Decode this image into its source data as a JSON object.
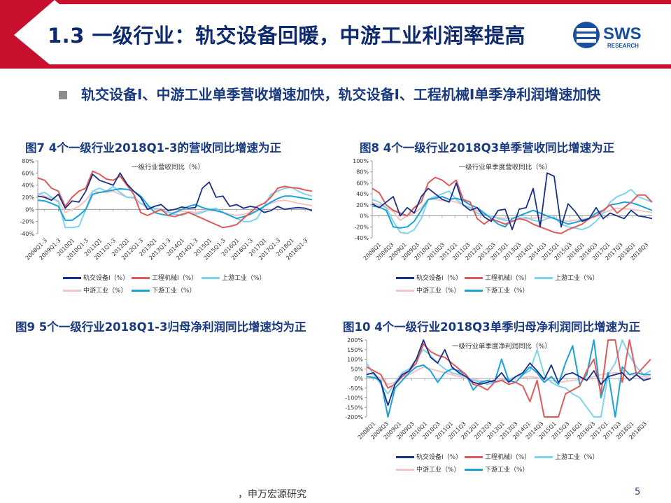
{
  "header": {
    "title": "1.3 一级行业：轨交设备回暖，中游工业利润率提高",
    "logo_text": "SWS",
    "logo_subtext": "RESEARCH"
  },
  "bullet": {
    "text": "轨交设备Ⅰ、中游工业单季营收增速加快，轨交设备Ⅰ、工程机械Ⅰ单季净利润增速加快"
  },
  "figures": {
    "fig7_title": "图7 4个一级行业2018Q1-3的营收同比增速为正",
    "fig8_title": "图8 4个一级行业2018Q3单季营收同比增速为正",
    "fig9_title": "图9 5个一级行业2018Q1-3归母净利润同比增速均为正",
    "fig10_title": "图10 4个一级行业2018Q3单季归母净利润同比增速为正"
  },
  "legend": {
    "s1": "轨交设备Ⅰ（%）",
    "s2": "工程机械Ⅰ（%）",
    "s3": "上游工业（%）",
    "s4": "中游工业（%）",
    "s5": "下游工业（%）"
  },
  "footer": {
    "source": "，申万宏源研究",
    "page": "5"
  },
  "colors": {
    "series": [
      "#1a2f8a",
      "#e05a5a",
      "#7fd3f0",
      "#f2c4c4",
      "#1aa3d9"
    ],
    "title": "#0d2a6e",
    "accent_red": "#c8102e"
  },
  "chart_data": [
    {
      "id": "fig7",
      "type": "line",
      "annotation": "一级行业营收同比（%）",
      "ylim": [
        -40,
        80
      ],
      "yticks": [
        -40,
        -20,
        0,
        20,
        40,
        60,
        80
      ],
      "ytick_labels": [
        "-40%",
        "-20%",
        "0%",
        "20%",
        "40%",
        "60%",
        "80%"
      ],
      "x_labels": [
        "2008Q1-3",
        "2009Q1-3",
        "2010Q1",
        "2010Q1-3",
        "2011Q1",
        "2011Q1-3",
        "2012Q1",
        "2012Q1-3",
        "2013Q1",
        "2013Q1-3",
        "2014Q1",
        "2014Q1-3",
        "2015Q1",
        "2015Q1-3",
        "2016Q1",
        "2016Q1-3",
        "2017Q1",
        "2017Q1-3",
        "2018Q1",
        "2018Q1-3"
      ],
      "series": [
        {
          "name": "轨交设备Ⅰ（%）",
          "values": [
            22,
            20,
            15,
            25,
            2,
            14,
            12,
            30,
            58,
            48,
            44,
            40,
            60,
            42,
            30,
            20,
            0,
            5,
            8,
            -2,
            0,
            4,
            2,
            3,
            35,
            45,
            20,
            22,
            5,
            8,
            2,
            5,
            3,
            -5,
            -2,
            5,
            0,
            2,
            3,
            2,
            -2
          ]
        },
        {
          "name": "工程机械Ⅰ（%）",
          "values": [
            52,
            48,
            35,
            30,
            5,
            20,
            30,
            35,
            63,
            58,
            50,
            48,
            55,
            40,
            25,
            -5,
            -10,
            -5,
            0,
            -10,
            -12,
            -8,
            -5,
            -10,
            -15,
            -20,
            -25,
            -30,
            -28,
            -25,
            -15,
            -5,
            5,
            10,
            20,
            35,
            38,
            36,
            35,
            32,
            30
          ]
        },
        {
          "name": "上游工业（%）",
          "values": [
            25,
            28,
            20,
            12,
            -30,
            -30,
            -28,
            0,
            30,
            35,
            30,
            38,
            28,
            20,
            20,
            10,
            5,
            2,
            0,
            -5,
            -8,
            -10,
            -5,
            -8,
            -5,
            0,
            2,
            -5,
            -10,
            -15,
            -20,
            -20,
            -15,
            5,
            25,
            30,
            35,
            36,
            30,
            25,
            22
          ]
        },
        {
          "name": "中游工业（%）",
          "values": [
            26,
            22,
            18,
            15,
            -5,
            0,
            5,
            15,
            30,
            28,
            28,
            30,
            25,
            20,
            18,
            10,
            2,
            0,
            -2,
            -5,
            -5,
            -3,
            -4,
            -5,
            -3,
            -2,
            -2,
            -5,
            -8,
            -10,
            -8,
            -5,
            -2,
            5,
            10,
            14,
            15,
            13,
            10,
            8,
            6
          ]
        },
        {
          "name": "下游工业（%）",
          "values": [
            15,
            14,
            10,
            5,
            -18,
            -18,
            -10,
            0,
            25,
            28,
            30,
            32,
            34,
            33,
            30,
            22,
            8,
            -5,
            -8,
            -10,
            -5,
            0,
            5,
            8,
            3,
            0,
            -2,
            -5,
            -10,
            -15,
            -12,
            -8,
            -2,
            5,
            12,
            18,
            22,
            22,
            20,
            18,
            16
          ]
        }
      ]
    },
    {
      "id": "fig8",
      "type": "line",
      "annotation": "一级行业单季度营收同比（%）",
      "ylim": [
        -40,
        100
      ],
      "yticks": [
        -40,
        -20,
        0,
        20,
        40,
        60,
        80,
        100
      ],
      "ytick_labels": [
        "-40%",
        "-20%",
        "0%",
        "20%",
        "40%",
        "60%",
        "80%",
        "100%"
      ],
      "x_labels": [
        "2008Q1",
        "2008Q3",
        "2009Q1",
        "2009Q3",
        "2010Q1",
        "2010Q3",
        "2011Q1",
        "2011Q3",
        "2012Q1",
        "2012Q3",
        "2013Q1",
        "2013Q3",
        "2014Q1",
        "2014Q3",
        "2015Q1",
        "2015Q3",
        "2016Q1",
        "2016Q3",
        "2017Q1",
        "2017Q3",
        "2018Q1",
        "2018Q3"
      ],
      "series": [
        {
          "name": "轨交设备Ⅰ（%）",
          "values": [
            22,
            15,
            25,
            35,
            0,
            15,
            5,
            35,
            50,
            40,
            30,
            25,
            60,
            20,
            10,
            15,
            -2,
            -10,
            10,
            12,
            -25,
            12,
            15,
            50,
            -20,
            78,
            72,
            -20,
            22,
            8,
            -10,
            -5,
            15,
            -5,
            5,
            0,
            -5,
            10,
            0,
            -2,
            -5
          ]
        },
        {
          "name": "工程机械Ⅰ（%）",
          "values": [
            50,
            42,
            20,
            10,
            5,
            0,
            15,
            25,
            60,
            70,
            65,
            55,
            65,
            30,
            25,
            -5,
            -15,
            -5,
            -10,
            -15,
            -10,
            -5,
            -8,
            -15,
            -20,
            -25,
            -30,
            -32,
            -25,
            -20,
            -15,
            -5,
            0,
            10,
            20,
            5,
            15,
            25,
            38,
            38,
            25
          ]
        },
        {
          "name": "上游工业（%）",
          "values": [
            30,
            25,
            15,
            -10,
            -30,
            -32,
            -25,
            -5,
            30,
            35,
            40,
            45,
            30,
            20,
            15,
            5,
            2,
            0,
            -5,
            -8,
            -10,
            -5,
            -3,
            -8,
            -10,
            -5,
            -2,
            -15,
            -20,
            -22,
            -25,
            -20,
            -10,
            5,
            25,
            35,
            40,
            48,
            35,
            30,
            25
          ]
        },
        {
          "name": "中游工业（%）",
          "values": [
            24,
            20,
            15,
            8,
            -8,
            0,
            5,
            15,
            30,
            30,
            28,
            28,
            25,
            20,
            15,
            10,
            3,
            -2,
            -3,
            -5,
            -4,
            -3,
            -5,
            -4,
            -3,
            -2,
            -4,
            -8,
            -10,
            -8,
            -6,
            -4,
            0,
            5,
            10,
            14,
            13,
            12,
            10,
            8,
            6
          ]
        },
        {
          "name": "下游工业（%）",
          "values": [
            18,
            16,
            10,
            -20,
            -22,
            -20,
            -10,
            10,
            30,
            32,
            35,
            30,
            32,
            28,
            20,
            15,
            5,
            -5,
            -15,
            -20,
            -5,
            0,
            5,
            10,
            5,
            0,
            -5,
            -10,
            -15,
            -12,
            -8,
            -5,
            5,
            10,
            20,
            22,
            25,
            24,
            20,
            15,
            10
          ]
        }
      ]
    },
    {
      "id": "fig10",
      "type": "line",
      "annotation": "一级行业单季度净利润同比（%）",
      "ylim": [
        -200,
        200
      ],
      "yticks": [
        -200,
        -150,
        -100,
        -50,
        0,
        50,
        100,
        150,
        200
      ],
      "ytick_labels": [
        "-200%",
        "-150%",
        "-100%",
        "-50%",
        "0%",
        "50%",
        "100%",
        "150%",
        "200%"
      ],
      "x_labels": [
        "2008Q1",
        "2008Q3",
        "2009Q1",
        "2009Q3",
        "2010Q1",
        "2010Q3",
        "2011Q1",
        "2011Q3",
        "2012Q1",
        "2012Q3",
        "2013Q1",
        "2013Q3",
        "2014Q1",
        "2014Q3",
        "2015Q1",
        "2015Q3",
        "2016Q1",
        "2016Q3",
        "2017Q1",
        "2017Q3",
        "2018Q1",
        "2018Q3"
      ],
      "series": [
        {
          "name": "轨交设备Ⅰ（%）",
          "values": [
            20,
            30,
            -20,
            -140,
            -30,
            20,
            40,
            100,
            200,
            110,
            80,
            150,
            60,
            30,
            10,
            -20,
            -30,
            -20,
            -10,
            30,
            -20,
            10,
            30,
            80,
            40,
            -5,
            70,
            -20,
            20,
            30,
            10,
            -10,
            40,
            -30,
            10,
            20,
            30,
            -10,
            20,
            -10,
            0
          ]
        },
        {
          "name": "工程机械Ⅰ（%）",
          "values": [
            60,
            40,
            20,
            -50,
            -30,
            10,
            40,
            80,
            180,
            140,
            120,
            110,
            80,
            50,
            20,
            -30,
            -40,
            -60,
            -20,
            -10,
            -30,
            -20,
            -40,
            -120,
            -10,
            -200,
            -200,
            -200,
            -80,
            -60,
            -40,
            40,
            100,
            -80,
            200,
            200,
            -20,
            200,
            20,
            60,
            100
          ]
        },
        {
          "name": "上游工业（%）",
          "values": [
            80,
            20,
            -30,
            -80,
            -20,
            30,
            50,
            100,
            150,
            120,
            80,
            50,
            30,
            20,
            10,
            -10,
            -20,
            -30,
            -20,
            -10,
            -5,
            10,
            20,
            40,
            150,
            20,
            -20,
            -40,
            -50,
            -80,
            -100,
            -150,
            -200,
            -200,
            20,
            80,
            200,
            120,
            60,
            20,
            40
          ]
        },
        {
          "name": "中游工业（%）",
          "values": [
            30,
            20,
            0,
            -30,
            -20,
            10,
            20,
            40,
            60,
            50,
            40,
            30,
            20,
            10,
            5,
            -5,
            -10,
            -15,
            -10,
            -5,
            -5,
            0,
            5,
            10,
            5,
            -5,
            -10,
            -20,
            -15,
            -10,
            -5,
            0,
            10,
            20,
            25,
            30,
            25,
            20,
            15,
            10,
            5
          ]
        },
        {
          "name": "下游工业（%）",
          "values": [
            10,
            5,
            -10,
            -200,
            -50,
            -10,
            30,
            60,
            70,
            40,
            -20,
            30,
            50,
            40,
            20,
            -60,
            -20,
            -10,
            -20,
            100,
            -10,
            -20,
            20,
            60,
            30,
            -20,
            10,
            -30,
            80,
            170,
            -30,
            20,
            200,
            -100,
            30,
            -200,
            60,
            20,
            30,
            20,
            20
          ]
        }
      ]
    }
  ]
}
